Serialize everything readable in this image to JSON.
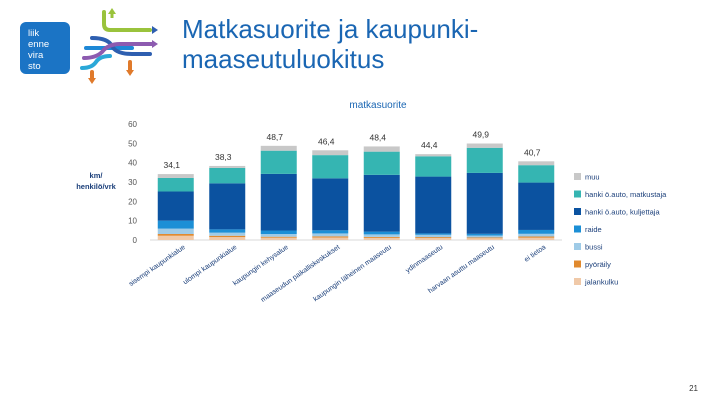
{
  "slide": {
    "title": "Matkasuorite ja kaupunki-maaseutuluokitus",
    "page_number": "21",
    "logo_text": [
      "liik",
      "enne",
      "vira",
      "sto"
    ]
  },
  "colors": {
    "title": "#1a66b3",
    "muu": "#c8c8c8",
    "hanki_matkustaja": "#35b5b2",
    "hanki_kuljettaja": "#0b52a0",
    "raide": "#1c8fd6",
    "bussi": "#9fcbe7",
    "pyoraily": "#e0892e",
    "jalankulku": "#f0c9a8"
  },
  "chart_data": {
    "type": "bar",
    "stacked": true,
    "title": "matkasuorite",
    "ylabel": "km/ henkilö/vrk",
    "ylim": [
      0,
      60
    ],
    "yticks": [
      0,
      10,
      20,
      30,
      40,
      50,
      60
    ],
    "grid": false,
    "legend_position": "right",
    "categories": [
      "sisempi kaupunkialue",
      "ulompi kaupunkialue",
      "kaupungin kehysalue",
      "maaseudun paikalliskeskukset",
      "kaupungin läheinen maaseutu",
      "ydinmaaseutu",
      "harvaan asuttu maaseutu",
      "ei tietoa"
    ],
    "totals": [
      34.1,
      38.3,
      48.7,
      46.4,
      48.4,
      44.4,
      49.9,
      40.7
    ],
    "total_labels": [
      "34,1",
      "38,3",
      "48,7",
      "46,4",
      "48,4",
      "44,4",
      "49,9",
      "40,7"
    ],
    "series": [
      {
        "name": "jalankulku",
        "color": "#f0c9a8",
        "values": [
          2.2,
          1.5,
          1.2,
          1.3,
          1.1,
          1.0,
          0.9,
          1.2
        ]
      },
      {
        "name": "pyöräily",
        "color": "#e0892e",
        "values": [
          0.9,
          0.7,
          0.5,
          0.6,
          0.5,
          0.5,
          0.4,
          0.6
        ]
      },
      {
        "name": "bussi",
        "color": "#9fcbe7",
        "values": [
          2.8,
          1.6,
          1.4,
          1.5,
          1.3,
          1.2,
          1.0,
          1.4
        ]
      },
      {
        "name": "raide",
        "color": "#1c8fd6",
        "values": [
          4.1,
          1.7,
          1.8,
          1.6,
          1.4,
          0.7,
          0.9,
          2.0
        ]
      },
      {
        "name": "hanki ö.auto, kuljettaja",
        "color": "#0b52a0",
        "values": [
          15.1,
          23.8,
          29.3,
          26.9,
          29.4,
          29.4,
          31.5,
          24.5
        ]
      },
      {
        "name": "hanki ö.auto, matkustaja",
        "color": "#35b5b2",
        "values": [
          7.0,
          8.0,
          12.0,
          12.0,
          12.0,
          10.5,
          13.0,
          9.0
        ]
      },
      {
        "name": "muu",
        "color": "#c8c8c8",
        "values": [
          2.0,
          1.0,
          2.5,
          2.5,
          2.7,
          1.1,
          2.2,
          2.0
        ]
      }
    ],
    "legend_order": [
      "muu",
      "hanki ö.auto, matkustaja",
      "hanki ö.auto, kuljettaja",
      "raide",
      "bussi",
      "pyöräily",
      "jalankulku"
    ]
  }
}
